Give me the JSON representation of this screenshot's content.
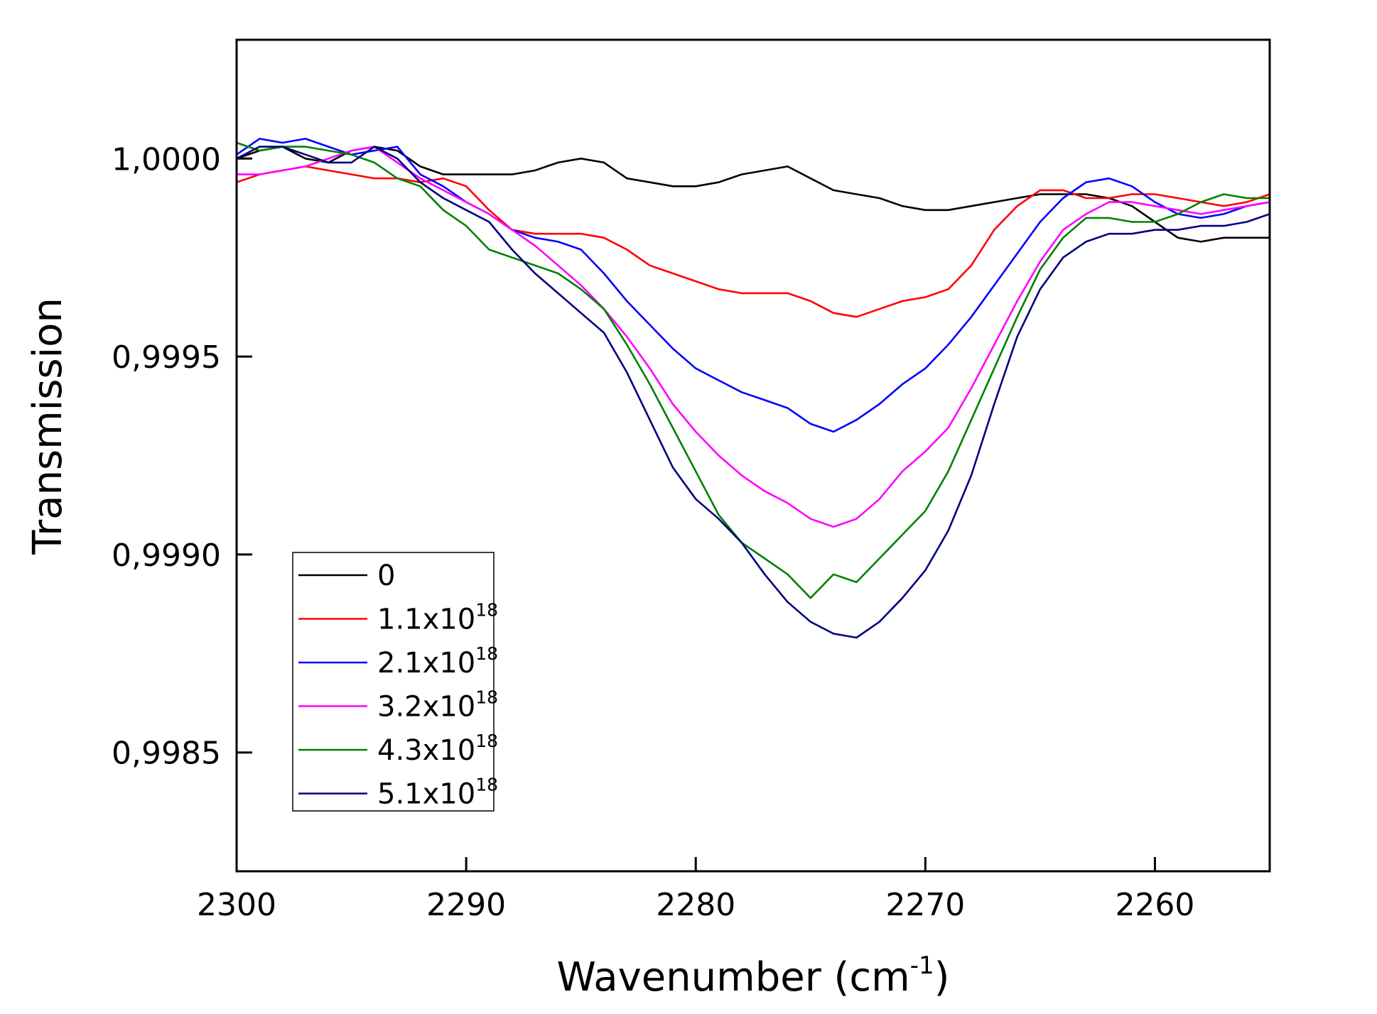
{
  "chart_data": {
    "type": "line",
    "title": "",
    "xlabel": "Wavenumber (cm",
    "xlabel_sup": "-1",
    "xlabel_close": ")",
    "ylabel": "Transmission",
    "xlim": [
      2300,
      2255
    ],
    "ylim": [
      0.9982,
      1.0003
    ],
    "x_reversed": true,
    "x_ticks": [
      2300,
      2290,
      2280,
      2270,
      2260
    ],
    "y_ticks": [
      1.0,
      0.9995,
      0.999,
      0.9985
    ],
    "y_tick_labels": [
      "1,0000",
      "0,9995",
      "0,9990",
      "0,9985"
    ],
    "grid": false,
    "legend": "bottom-left",
    "x": [
      2300,
      2299,
      2298,
      2297,
      2296,
      2295,
      2294,
      2293,
      2292,
      2291,
      2290,
      2289,
      2288,
      2287,
      2286,
      2285,
      2284,
      2283,
      2282,
      2281,
      2280,
      2279,
      2278,
      2277,
      2276,
      2275,
      2274,
      2273,
      2272,
      2271,
      2270,
      2269,
      2268,
      2267,
      2266,
      2265,
      2264,
      2263,
      2262,
      2261,
      2260,
      2259,
      2258,
      2257,
      2256,
      2255
    ],
    "series": [
      {
        "name": "0",
        "label_base": "0",
        "label_sup": "",
        "color": "#000000",
        "values": [
          1.0,
          1.00002,
          1.00003,
          1.0,
          0.99999,
          1.00002,
          1.00003,
          1.00002,
          0.99998,
          0.99996,
          0.99996,
          0.99996,
          0.99996,
          0.99997,
          0.99999,
          1.0,
          0.99999,
          0.99995,
          0.99994,
          0.99993,
          0.99993,
          0.99994,
          0.99996,
          0.99997,
          0.99998,
          0.99995,
          0.99992,
          0.99991,
          0.9999,
          0.99988,
          0.99987,
          0.99987,
          0.99988,
          0.99989,
          0.9999,
          0.99991,
          0.99991,
          0.99991,
          0.9999,
          0.99988,
          0.99984,
          0.9998,
          0.99979,
          0.9998,
          0.9998,
          0.9998
        ]
      },
      {
        "name": "1.1x10^18",
        "label_base": "1.1x10",
        "label_sup": "18",
        "color": "#ff0000",
        "values": [
          0.99994,
          0.99996,
          0.99997,
          0.99998,
          0.99997,
          0.99996,
          0.99995,
          0.99995,
          0.99994,
          0.99995,
          0.99993,
          0.99987,
          0.99982,
          0.99981,
          0.99981,
          0.99981,
          0.9998,
          0.99977,
          0.99973,
          0.99971,
          0.99969,
          0.99967,
          0.99966,
          0.99966,
          0.99966,
          0.99964,
          0.99961,
          0.9996,
          0.99962,
          0.99964,
          0.99965,
          0.99967,
          0.99973,
          0.99982,
          0.99988,
          0.99992,
          0.99992,
          0.9999,
          0.9999,
          0.99991,
          0.99991,
          0.9999,
          0.99989,
          0.99988,
          0.99989,
          0.99991
        ]
      },
      {
        "name": "2.1x10^18",
        "label_base": "2.1x10",
        "label_sup": "18",
        "color": "#0000ff",
        "values": [
          1.00001,
          1.00005,
          1.00004,
          1.00005,
          1.00003,
          1.00001,
          1.00002,
          1.00003,
          0.99996,
          0.99993,
          0.99989,
          0.99986,
          0.99982,
          0.9998,
          0.99979,
          0.99977,
          0.99971,
          0.99964,
          0.99958,
          0.99952,
          0.99947,
          0.99944,
          0.99941,
          0.99939,
          0.99937,
          0.99933,
          0.99931,
          0.99934,
          0.99938,
          0.99943,
          0.99947,
          0.99953,
          0.9996,
          0.99968,
          0.99976,
          0.99984,
          0.9999,
          0.99994,
          0.99995,
          0.99993,
          0.99989,
          0.99986,
          0.99985,
          0.99986,
          0.99988,
          0.99989
        ]
      },
      {
        "name": "3.2x10^18",
        "label_base": "3.2x10",
        "label_sup": "18",
        "color": "#ff00ff",
        "values": [
          0.99996,
          0.99996,
          0.99997,
          0.99998,
          1.0,
          1.00002,
          1.00003,
          0.99999,
          0.99995,
          0.99992,
          0.99989,
          0.99986,
          0.99982,
          0.99978,
          0.99973,
          0.99968,
          0.99962,
          0.99955,
          0.99947,
          0.99938,
          0.99931,
          0.99925,
          0.9992,
          0.99916,
          0.99913,
          0.99909,
          0.99907,
          0.99909,
          0.99914,
          0.99921,
          0.99926,
          0.99932,
          0.99942,
          0.99953,
          0.99964,
          0.99974,
          0.99982,
          0.99986,
          0.99989,
          0.99989,
          0.99988,
          0.99987,
          0.99986,
          0.99987,
          0.99988,
          0.99989
        ]
      },
      {
        "name": "4.3x10^18",
        "label_base": "4.3x10",
        "label_sup": "18",
        "color": "#008000",
        "values": [
          1.00004,
          1.00002,
          1.00003,
          1.00003,
          1.00002,
          1.00001,
          0.99999,
          0.99995,
          0.99993,
          0.99987,
          0.99983,
          0.99977,
          0.99975,
          0.99973,
          0.99971,
          0.99967,
          0.99962,
          0.99953,
          0.99943,
          0.99932,
          0.99921,
          0.9991,
          0.99903,
          0.99899,
          0.99895,
          0.99889,
          0.99895,
          0.99893,
          0.99899,
          0.99905,
          0.99911,
          0.99921,
          0.99934,
          0.99947,
          0.9996,
          0.99972,
          0.9998,
          0.99985,
          0.99985,
          0.99984,
          0.99984,
          0.99986,
          0.99989,
          0.99991,
          0.9999,
          0.9999
        ]
      },
      {
        "name": "5.1x10^18",
        "label_base": "5.1x10",
        "label_sup": "18",
        "color": "#000080",
        "values": [
          1.0,
          1.00003,
          1.00003,
          1.00001,
          0.99999,
          0.99999,
          1.00003,
          1.0,
          0.99994,
          0.9999,
          0.99987,
          0.99984,
          0.99977,
          0.99971,
          0.99966,
          0.99961,
          0.99956,
          0.99946,
          0.99934,
          0.99922,
          0.99914,
          0.99909,
          0.99903,
          0.99895,
          0.99888,
          0.99883,
          0.9988,
          0.99879,
          0.99883,
          0.99889,
          0.99896,
          0.99906,
          0.9992,
          0.99938,
          0.99955,
          0.99967,
          0.99975,
          0.99979,
          0.99981,
          0.99981,
          0.99982,
          0.99982,
          0.99983,
          0.99983,
          0.99984,
          0.99986
        ]
      }
    ]
  }
}
